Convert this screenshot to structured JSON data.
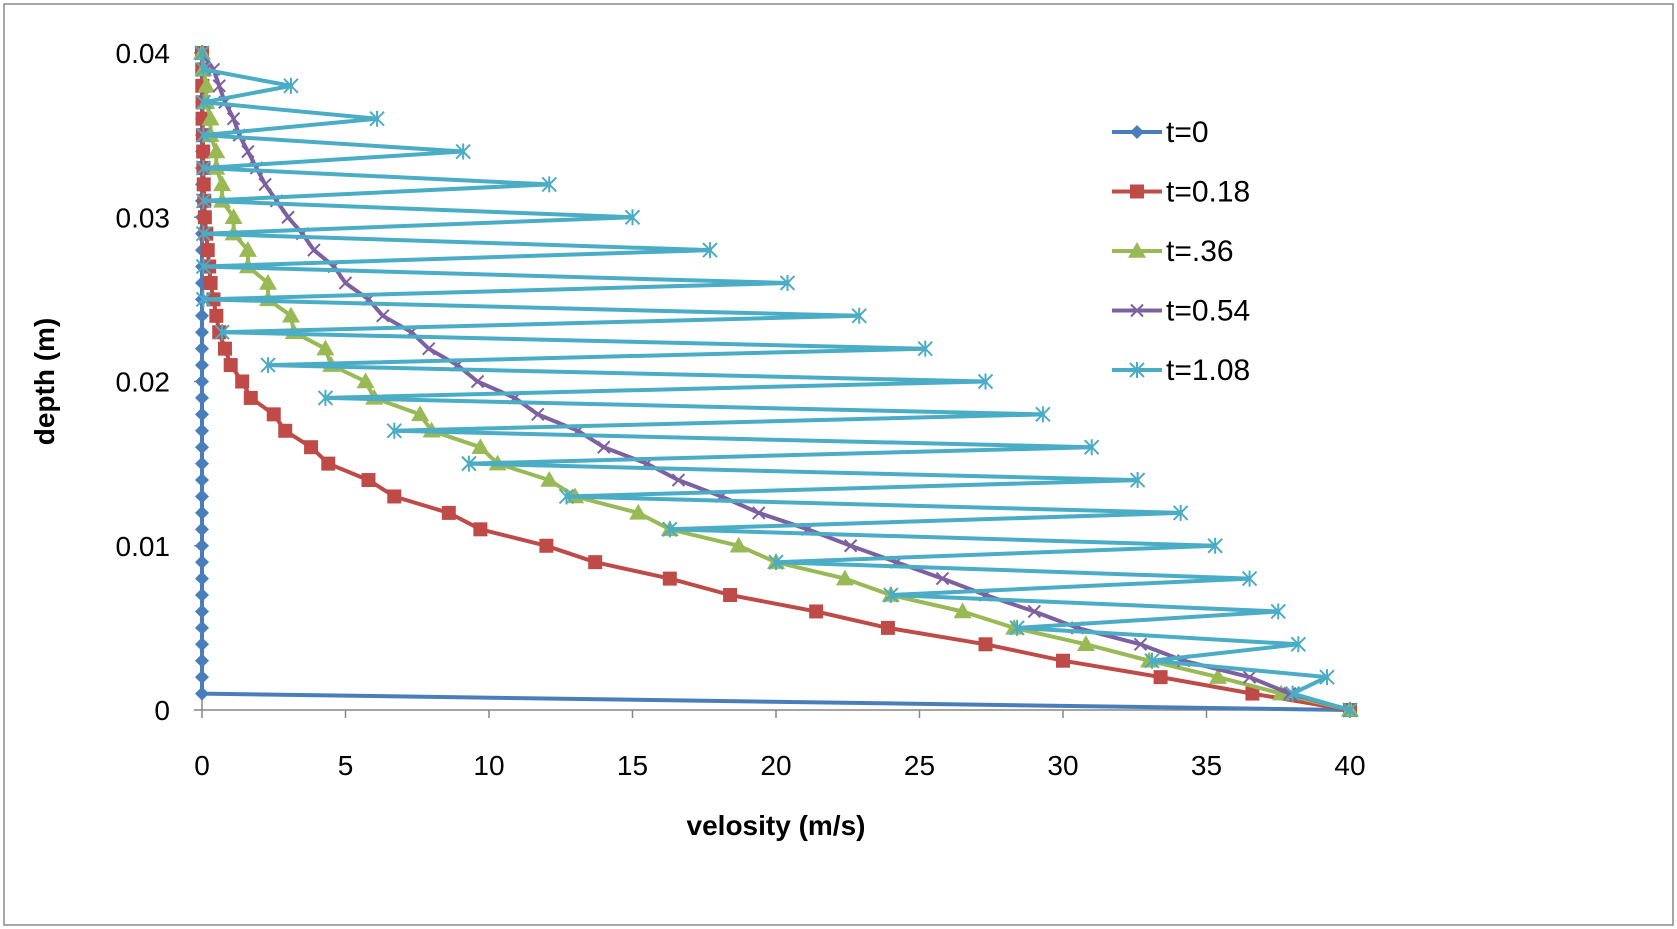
{
  "chart_data": {
    "type": "line",
    "title": "",
    "xlabel": "velosity (m/s)",
    "ylabel": "depth (m)",
    "xlim": [
      0,
      40
    ],
    "ylim": [
      0,
      0.04
    ],
    "x_ticks": [
      "0",
      "5",
      "10",
      "15",
      "20",
      "25",
      "30",
      "35",
      "40"
    ],
    "y_ticks": [
      "0",
      "0.01",
      "0.02",
      "0.03",
      "0.04"
    ],
    "grid": false,
    "legend_position": "right",
    "series": [
      {
        "name": "t=0",
        "color": "#4a7ebb",
        "marker": "diamond",
        "points": [
          [
            40,
            0
          ],
          [
            0,
            0.001
          ],
          [
            0,
            0.002
          ],
          [
            0,
            0.003
          ],
          [
            0,
            0.004
          ],
          [
            0,
            0.005
          ],
          [
            0,
            0.006
          ],
          [
            0,
            0.007
          ],
          [
            0,
            0.008
          ],
          [
            0,
            0.009
          ],
          [
            0,
            0.01
          ],
          [
            0,
            0.011
          ],
          [
            0,
            0.012
          ],
          [
            0,
            0.013
          ],
          [
            0,
            0.014
          ],
          [
            0,
            0.015
          ],
          [
            0,
            0.016
          ],
          [
            0,
            0.017
          ],
          [
            0,
            0.018
          ],
          [
            0,
            0.019
          ],
          [
            0,
            0.02
          ],
          [
            0,
            0.021
          ],
          [
            0,
            0.022
          ],
          [
            0,
            0.023
          ],
          [
            0,
            0.024
          ],
          [
            0,
            0.025
          ],
          [
            0,
            0.026
          ],
          [
            0,
            0.027
          ],
          [
            0,
            0.028
          ],
          [
            0,
            0.029
          ],
          [
            0,
            0.03
          ],
          [
            0,
            0.031
          ],
          [
            0,
            0.032
          ],
          [
            0,
            0.033
          ],
          [
            0,
            0.034
          ],
          [
            0,
            0.035
          ],
          [
            0,
            0.036
          ],
          [
            0,
            0.037
          ],
          [
            0,
            0.038
          ],
          [
            0,
            0.039
          ],
          [
            0,
            0.04
          ]
        ]
      },
      {
        "name": "t=0.18",
        "color": "#be4b48",
        "marker": "square",
        "points": [
          [
            40,
            0
          ],
          [
            36.6,
            0.001
          ],
          [
            33.4,
            0.002
          ],
          [
            30.0,
            0.003
          ],
          [
            27.3,
            0.004
          ],
          [
            23.9,
            0.005
          ],
          [
            21.4,
            0.006
          ],
          [
            18.4,
            0.007
          ],
          [
            16.3,
            0.008
          ],
          [
            13.7,
            0.009
          ],
          [
            12.0,
            0.01
          ],
          [
            9.7,
            0.011
          ],
          [
            8.6,
            0.012
          ],
          [
            6.7,
            0.013
          ],
          [
            5.8,
            0.014
          ],
          [
            4.4,
            0.015
          ],
          [
            3.8,
            0.016
          ],
          [
            2.9,
            0.017
          ],
          [
            2.5,
            0.018
          ],
          [
            1.7,
            0.019
          ],
          [
            1.4,
            0.02
          ],
          [
            1.0,
            0.021
          ],
          [
            0.8,
            0.022
          ],
          [
            0.6,
            0.023
          ],
          [
            0.5,
            0.024
          ],
          [
            0.4,
            0.025
          ],
          [
            0.3,
            0.026
          ],
          [
            0.25,
            0.027
          ],
          [
            0.2,
            0.028
          ],
          [
            0.15,
            0.029
          ],
          [
            0.1,
            0.03
          ],
          [
            0.08,
            0.031
          ],
          [
            0.06,
            0.032
          ],
          [
            0.05,
            0.033
          ],
          [
            0.04,
            0.034
          ],
          [
            0.03,
            0.035
          ],
          [
            0.02,
            0.036
          ],
          [
            0.02,
            0.037
          ],
          [
            0.01,
            0.038
          ],
          [
            0.01,
            0.039
          ],
          [
            0,
            0.04
          ]
        ]
      },
      {
        "name": "t=.36",
        "color": "#98b954",
        "marker": "triangle",
        "points": [
          [
            40,
            0
          ],
          [
            37.6,
            0.001
          ],
          [
            35.4,
            0.002
          ],
          [
            33.0,
            0.003
          ],
          [
            30.8,
            0.004
          ],
          [
            28.3,
            0.005
          ],
          [
            26.5,
            0.006
          ],
          [
            24.0,
            0.007
          ],
          [
            22.4,
            0.008
          ],
          [
            20.0,
            0.009
          ],
          [
            18.7,
            0.01
          ],
          [
            16.3,
            0.011
          ],
          [
            15.2,
            0.012
          ],
          [
            13.0,
            0.013
          ],
          [
            12.1,
            0.014
          ],
          [
            10.3,
            0.015
          ],
          [
            9.7,
            0.016
          ],
          [
            8.0,
            0.017
          ],
          [
            7.6,
            0.018
          ],
          [
            6.0,
            0.019
          ],
          [
            5.7,
            0.02
          ],
          [
            4.5,
            0.021
          ],
          [
            4.3,
            0.022
          ],
          [
            3.2,
            0.023
          ],
          [
            3.1,
            0.024
          ],
          [
            2.3,
            0.025
          ],
          [
            2.3,
            0.026
          ],
          [
            1.6,
            0.027
          ],
          [
            1.6,
            0.028
          ],
          [
            1.1,
            0.029
          ],
          [
            1.1,
            0.03
          ],
          [
            0.7,
            0.031
          ],
          [
            0.7,
            0.032
          ],
          [
            0.5,
            0.033
          ],
          [
            0.5,
            0.034
          ],
          [
            0.3,
            0.035
          ],
          [
            0.3,
            0.036
          ],
          [
            0.15,
            0.037
          ],
          [
            0.15,
            0.038
          ],
          [
            0.05,
            0.039
          ],
          [
            0,
            0.04
          ]
        ]
      },
      {
        "name": "t=0.54",
        "color": "#7d60a0",
        "marker": "x",
        "points": [
          [
            40,
            0
          ],
          [
            37.9,
            0.001
          ],
          [
            36.5,
            0.002
          ],
          [
            34.2,
            0.003
          ],
          [
            32.7,
            0.004
          ],
          [
            30.5,
            0.005
          ],
          [
            29.0,
            0.006
          ],
          [
            27.3,
            0.007
          ],
          [
            25.8,
            0.008
          ],
          [
            24.2,
            0.009
          ],
          [
            22.6,
            0.01
          ],
          [
            21.1,
            0.011
          ],
          [
            19.4,
            0.012
          ],
          [
            18.1,
            0.013
          ],
          [
            16.6,
            0.014
          ],
          [
            15.5,
            0.015
          ],
          [
            14.0,
            0.016
          ],
          [
            13.1,
            0.017
          ],
          [
            11.7,
            0.018
          ],
          [
            10.9,
            0.019
          ],
          [
            9.6,
            0.02
          ],
          [
            8.9,
            0.021
          ],
          [
            7.9,
            0.022
          ],
          [
            7.3,
            0.023
          ],
          [
            6.3,
            0.024
          ],
          [
            5.8,
            0.025
          ],
          [
            5.0,
            0.026
          ],
          [
            4.6,
            0.027
          ],
          [
            3.9,
            0.028
          ],
          [
            3.5,
            0.029
          ],
          [
            3.0,
            0.03
          ],
          [
            2.6,
            0.031
          ],
          [
            2.2,
            0.032
          ],
          [
            1.9,
            0.033
          ],
          [
            1.6,
            0.034
          ],
          [
            1.3,
            0.035
          ],
          [
            1.1,
            0.036
          ],
          [
            0.8,
            0.037
          ],
          [
            0.6,
            0.038
          ],
          [
            0.4,
            0.039
          ],
          [
            0,
            0.04
          ]
        ]
      },
      {
        "name": "t=1.08",
        "color": "#4bacc6",
        "marker": "asterisk",
        "points": [
          [
            40,
            0
          ],
          [
            38.0,
            0.001
          ],
          [
            39.2,
            0.002
          ],
          [
            33.1,
            0.003
          ],
          [
            38.2,
            0.004
          ],
          [
            28.4,
            0.005
          ],
          [
            37.5,
            0.006
          ],
          [
            24.0,
            0.007
          ],
          [
            36.5,
            0.008
          ],
          [
            20.0,
            0.009
          ],
          [
            35.3,
            0.01
          ],
          [
            16.3,
            0.011
          ],
          [
            34.1,
            0.012
          ],
          [
            12.7,
            0.013
          ],
          [
            32.6,
            0.014
          ],
          [
            9.3,
            0.015
          ],
          [
            31.0,
            0.016
          ],
          [
            6.7,
            0.017
          ],
          [
            29.3,
            0.018
          ],
          [
            4.3,
            0.019
          ],
          [
            27.3,
            0.02
          ],
          [
            2.3,
            0.021
          ],
          [
            25.2,
            0.022
          ],
          [
            0.7,
            0.023
          ],
          [
            22.9,
            0.024
          ],
          [
            0.05,
            0.025
          ],
          [
            20.4,
            0.026
          ],
          [
            0.05,
            0.027
          ],
          [
            17.7,
            0.028
          ],
          [
            0.05,
            0.029
          ],
          [
            15.0,
            0.03
          ],
          [
            0.05,
            0.031
          ],
          [
            12.1,
            0.032
          ],
          [
            0.05,
            0.033
          ],
          [
            9.1,
            0.034
          ],
          [
            0.05,
            0.035
          ],
          [
            6.1,
            0.036
          ],
          [
            0.05,
            0.037
          ],
          [
            3.1,
            0.038
          ],
          [
            0.05,
            0.039
          ],
          [
            0,
            0.04
          ]
        ]
      }
    ]
  }
}
